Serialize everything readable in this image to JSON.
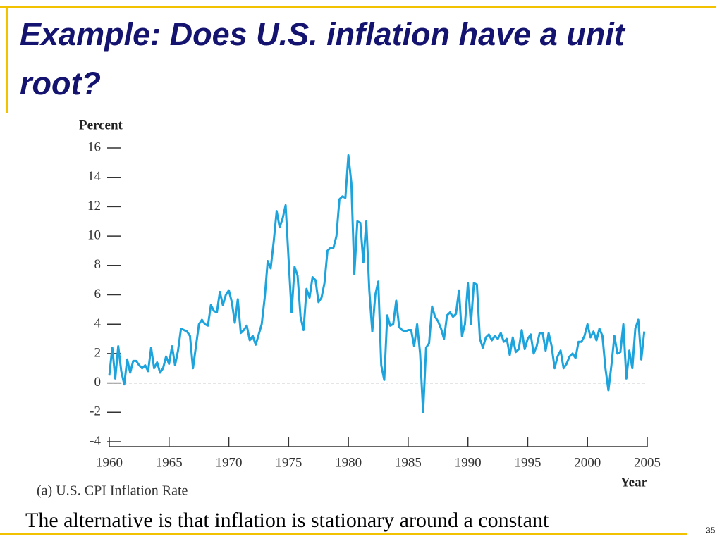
{
  "slide_title": "Example: Does U.S. inflation have a unit root?",
  "body_text": "The alternative is that inflation is stationary around a constant",
  "page_number": "35",
  "chart_data": {
    "type": "line",
    "y_label": "Percent",
    "x_label": "Year",
    "caption": "(a) U.S. CPI Inflation Rate",
    "color": "#1ea4dc",
    "xlim": [
      1960,
      2005
    ],
    "xticks": [
      1960,
      1965,
      1970,
      1975,
      1980,
      1985,
      1990,
      1995,
      2000,
      2005
    ],
    "ylim": [
      -4,
      16
    ],
    "yticks": [
      -4,
      -2,
      0,
      2,
      4,
      6,
      8,
      10,
      12,
      14,
      16
    ],
    "zero_line": 0,
    "x": [
      1960,
      1960.25,
      1960.5,
      1960.75,
      1961,
      1961.25,
      1961.5,
      1961.75,
      1962,
      1962.25,
      1962.5,
      1962.75,
      1963,
      1963.25,
      1963.5,
      1963.75,
      1964,
      1964.25,
      1964.5,
      1964.75,
      1965,
      1965.25,
      1965.5,
      1965.75,
      1966,
      1966.25,
      1966.5,
      1966.75,
      1967,
      1967.25,
      1967.5,
      1967.75,
      1968,
      1968.25,
      1968.5,
      1968.75,
      1969,
      1969.25,
      1969.5,
      1969.75,
      1970,
      1970.25,
      1970.5,
      1970.75,
      1971,
      1971.25,
      1971.5,
      1971.75,
      1972,
      1972.25,
      1972.5,
      1972.75,
      1973,
      1973.25,
      1973.5,
      1973.75,
      1974,
      1974.25,
      1974.5,
      1974.75,
      1975,
      1975.25,
      1975.5,
      1975.75,
      1976,
      1976.25,
      1976.5,
      1976.75,
      1977,
      1977.25,
      1977.5,
      1977.75,
      1978,
      1978.25,
      1978.5,
      1978.75,
      1979,
      1979.25,
      1979.5,
      1979.75,
      1980,
      1980.25,
      1980.5,
      1980.75,
      1981,
      1981.25,
      1981.5,
      1981.75,
      1982,
      1982.25,
      1982.5,
      1982.75,
      1983,
      1983.25,
      1983.5,
      1983.75,
      1984,
      1984.25,
      1984.5,
      1984.75,
      1985,
      1985.25,
      1985.5,
      1985.75,
      1986,
      1986.25,
      1986.5,
      1986.75,
      1987,
      1987.25,
      1987.5,
      1987.75,
      1988,
      1988.25,
      1988.5,
      1988.75,
      1989,
      1989.25,
      1989.5,
      1989.75,
      1990,
      1990.25,
      1990.5,
      1990.75,
      1991,
      1991.25,
      1991.5,
      1991.75,
      1992,
      1992.25,
      1992.5,
      1992.75,
      1993,
      1993.25,
      1993.5,
      1993.75,
      1994,
      1994.25,
      1994.5,
      1994.75,
      1995,
      1995.25,
      1995.5,
      1995.75,
      1996,
      1996.25,
      1996.5,
      1996.75,
      1997,
      1997.25,
      1997.5,
      1997.75,
      1998,
      1998.25,
      1998.5,
      1998.75,
      1999,
      1999.25,
      1999.5,
      1999.75,
      2000,
      2000.25,
      2000.5,
      2000.75,
      2001,
      2001.25,
      2001.5,
      2001.75,
      2002,
      2002.25,
      2002.5,
      2002.75,
      2003,
      2003.25,
      2003.5,
      2003.75,
      2004,
      2004.25,
      2004.5,
      2004.75
    ],
    "values": [
      0.5,
      2.4,
      0.3,
      2.5,
      0.8,
      -0.1,
      1.6,
      0.7,
      1.5,
      1.5,
      1.2,
      1.0,
      1.2,
      0.8,
      2.4,
      1.0,
      1.4,
      0.7,
      1.0,
      1.8,
      1.3,
      2.5,
      1.2,
      2.2,
      3.7,
      3.6,
      3.5,
      3.2,
      1.0,
      2.5,
      4.0,
      4.3,
      4.0,
      3.9,
      5.3,
      4.9,
      4.8,
      6.2,
      5.3,
      6.0,
      6.3,
      5.5,
      4.1,
      5.7,
      3.4,
      3.6,
      3.9,
      2.9,
      3.2,
      2.6,
      3.3,
      4.0,
      5.8,
      8.3,
      7.8,
      9.6,
      11.7,
      10.6,
      11.2,
      12.1,
      8.4,
      4.8,
      7.9,
      7.3,
      4.5,
      3.6,
      6.4,
      5.8,
      7.2,
      7.0,
      5.5,
      5.8,
      6.8,
      9.0,
      9.2,
      9.2,
      10.0,
      12.5,
      12.7,
      12.6,
      15.5,
      13.6,
      7.4,
      11.0,
      10.9,
      8.2,
      11.0,
      6.3,
      3.5,
      6.0,
      6.9,
      1.2,
      0.2,
      4.6,
      3.9,
      4.0,
      5.6,
      3.8,
      3.6,
      3.5,
      3.6,
      3.6,
      2.5,
      4.0,
      2.0,
      -2.0,
      2.4,
      2.7,
      5.2,
      4.5,
      4.2,
      3.7,
      3.0,
      4.6,
      4.8,
      4.5,
      4.7,
      6.3,
      3.2,
      4.0,
      6.8,
      4.0,
      6.8,
      6.7,
      3.0,
      2.4,
      3.1,
      3.3,
      2.9,
      3.2,
      3.0,
      3.4,
      2.8,
      3.0,
      1.9,
      3.1,
      2.1,
      2.3,
      3.6,
      2.3,
      3.0,
      3.3,
      2.0,
      2.5,
      3.4,
      3.4,
      2.2,
      3.4,
      2.5,
      1.0,
      1.8,
      2.2,
      1.0,
      1.3,
      1.8,
      2.0,
      1.7,
      2.8,
      2.8,
      3.2,
      4.0,
      3.1,
      3.5,
      2.9,
      3.7,
      3.2,
      1.0,
      -0.5,
      1.2,
      3.2,
      2.0,
      2.1,
      4.0,
      0.3,
      2.2,
      1.0,
      3.7,
      4.3,
      1.6,
      3.5
    ]
  }
}
